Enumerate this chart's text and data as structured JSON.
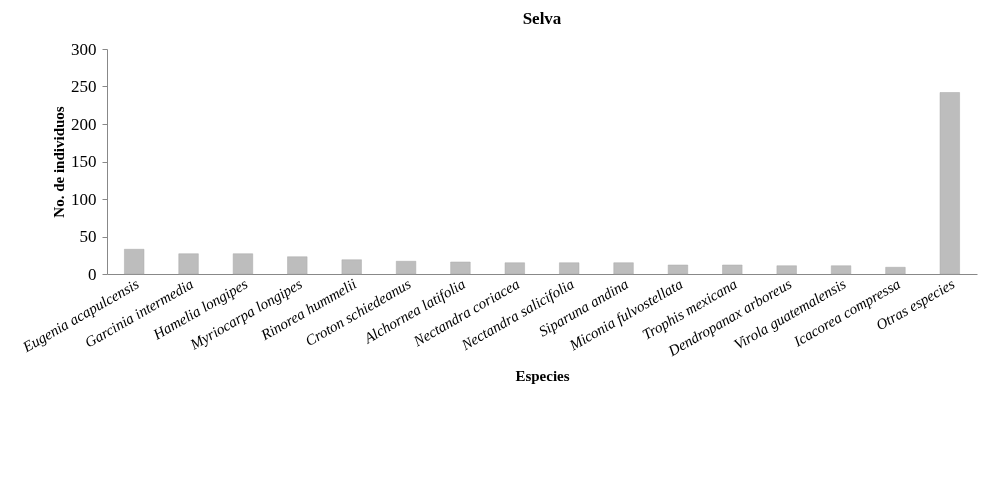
{
  "chart_data": {
    "type": "bar",
    "title": "Selva",
    "xlabel": "Especies",
    "ylabel": "No. de individuos",
    "categories": [
      "Eugenia acapulcensis",
      "Garcinia intermedia",
      "Hamelia longipes",
      "Myriocarpa longipes",
      "Rinorea hummelii",
      "Croton schiedeanus",
      "Alchornea latifolia",
      "Nectandra coriacea",
      "Nectandra salicifolia",
      "Siparuna andina",
      "Miconia fulvostellata",
      "Trophis mexicana",
      "Dendropanax arboreus",
      "Virola guatemalensis",
      "Icacorea compressa",
      "Otras especies"
    ],
    "values": [
      33,
      27,
      27,
      23,
      19,
      17,
      16,
      15,
      15,
      15,
      12,
      12,
      11,
      11,
      9,
      242
    ],
    "color": "#bdbdbd",
    "ylim": [
      0,
      300
    ],
    "yticks": [
      0,
      50,
      100,
      150,
      200,
      250,
      300
    ],
    "grid": false
  }
}
